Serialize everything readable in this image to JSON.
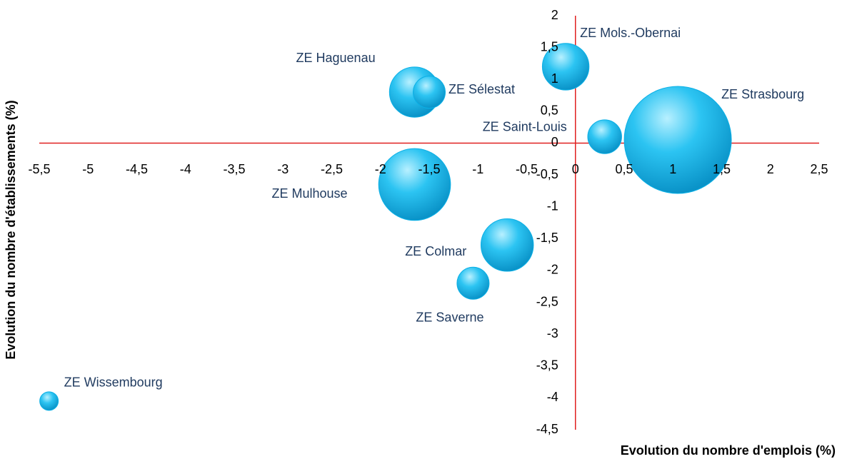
{
  "chart_data": {
    "type": "bubble",
    "x_label": "Evolution du nombre d'emplois (%)",
    "y_label": "Evolution du nombre d'établissements (%)",
    "categories": [
      "ZE Strasbourg",
      "ZE Mulhouse",
      "ZE Haguenau",
      "ZE Sélestat",
      "ZE Mols.-Obernai",
      "ZE Saint-Louis",
      "ZE Colmar",
      "ZE Saverne",
      "ZE Wissembourg"
    ],
    "x": [
      1.05,
      -1.65,
      -1.65,
      -1.5,
      -0.1,
      0.3,
      -0.7,
      -1.05,
      -5.4
    ],
    "values": [
      0.05,
      -0.65,
      0.8,
      0.8,
      1.2,
      0.1,
      -1.6,
      -2.2,
      -4.05
    ],
    "sizes": [
      100,
      45,
      22,
      9,
      19,
      10,
      24,
      9,
      3
    ],
    "color": "#0bb0e6",
    "axis_color": "#e02020",
    "grid": true,
    "xlim": [
      -5.5,
      2.5
    ],
    "xticks": [
      {
        "value": -5.5,
        "label": "-5,5"
      },
      -5,
      {
        "value": -4.5,
        "label": "-4,5"
      },
      -4,
      {
        "value": -3.5,
        "label": "-3,5"
      },
      -3,
      {
        "value": -2.5,
        "label": "-2,5"
      },
      -2,
      {
        "value": -1.5,
        "label": "-1,5"
      },
      -1,
      {
        "value": -0.5,
        "label": "-0,5"
      },
      0,
      {
        "value": 0.5,
        "label": "0,5"
      },
      1,
      {
        "value": 1.5,
        "label": "1,5"
      },
      2,
      {
        "value": 2.5,
        "label": "2,5"
      }
    ],
    "ylim": [
      -4.5,
      2
    ],
    "yticks": [
      {
        "value": -4.5,
        "label": "-4,5"
      },
      -4,
      {
        "value": -3.5,
        "label": "-3,5"
      },
      -3,
      {
        "value": -2.5,
        "label": "-2,5"
      },
      -2,
      {
        "value": -1.5,
        "label": "-1,5"
      },
      -1,
      {
        "value": -0.5,
        "label": "-0,5"
      },
      0,
      {
        "value": 0.5,
        "label": "0,5"
      },
      1,
      {
        "value": 1.5,
        "label": "1,5"
      },
      2
    ]
  }
}
